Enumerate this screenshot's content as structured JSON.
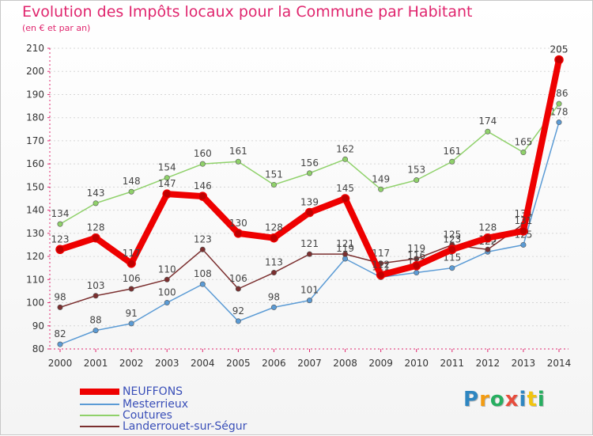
{
  "header": {
    "title": "Evolution des Impôts locaux pour la Commune par Habitant",
    "subtitle": "(en € et par an)"
  },
  "logo": {
    "letters": [
      "P",
      "r",
      "o",
      "x",
      "i",
      "t",
      "i"
    ],
    "colors": [
      "#2e86c1",
      "#f39c12",
      "#27ae60",
      "#e74c3c",
      "#2e86c1",
      "#f1c40f",
      "#27ae60"
    ]
  },
  "chart_data": {
    "type": "line",
    "title": "Evolution des Impôts locaux pour la Commune par Habitant",
    "subtitle": "(en € et par an)",
    "x": [
      "2000",
      "2001",
      "2002",
      "2003",
      "2004",
      "2005",
      "2006",
      "2007",
      "2008",
      "2009",
      "2010",
      "2011",
      "2012",
      "2013",
      "2014"
    ],
    "ylim": [
      80,
      210
    ],
    "yticks": [
      80,
      90,
      100,
      110,
      120,
      130,
      140,
      150,
      160,
      170,
      180,
      190,
      200,
      210
    ],
    "grid": "horizontal dashed",
    "legend_position": "bottom-left",
    "series": [
      {
        "name": "Mesterrieux",
        "color": "#5b9bd5",
        "values": [
          82,
          88,
          91,
          100,
          108,
          92,
          98,
          101,
          119,
          111,
          113,
          115,
          122,
          125,
          178
        ]
      },
      {
        "name": "Coutures",
        "color": "#8fd16a",
        "values": [
          134,
          143,
          148,
          154,
          160,
          161,
          151,
          156,
          162,
          149,
          153,
          161,
          174,
          165,
          186
        ]
      },
      {
        "name": "Landerrouet-sur-Ségur",
        "color": "#7b2f2f",
        "values": [
          98,
          103,
          106,
          110,
          123,
          106,
          113,
          121,
          121,
          117,
          119,
          125,
          123,
          134,
          205
        ]
      },
      {
        "name": "NEUFFONS",
        "color": "#ee0000",
        "values": [
          123,
          128,
          117,
          147,
          146,
          130,
          128,
          139,
          145,
          112,
          116,
          123,
          128,
          131,
          205
        ]
      }
    ]
  },
  "legend": [
    {
      "label": "NEUFFONS",
      "color": "#ee0000",
      "thick": true
    },
    {
      "label": "Mesterrieux",
      "color": "#5b9bd5",
      "thick": false
    },
    {
      "label": "Coutures",
      "color": "#8fd16a",
      "thick": false
    },
    {
      "label": "Landerrouet-sur-Ségur",
      "color": "#7b2f2f",
      "thick": false
    }
  ]
}
